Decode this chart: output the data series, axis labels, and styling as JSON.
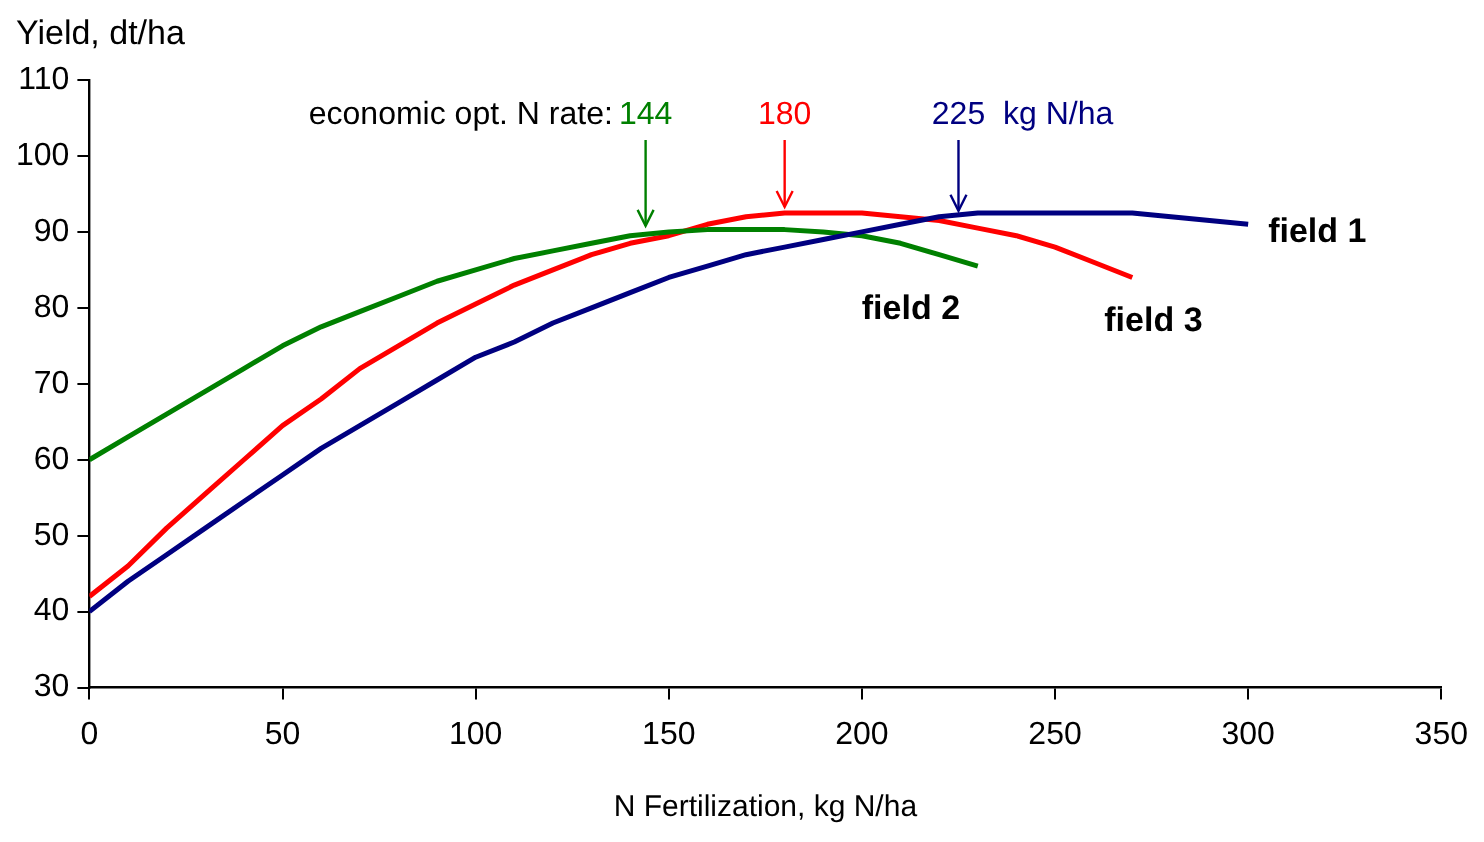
{
  "chart_data": {
    "type": "line",
    "ylabel": "Yield, dt/ha",
    "xlabel": "N Fertilization, kg N/ha",
    "xlim": [
      0,
      350
    ],
    "xticks": [
      0,
      50,
      100,
      150,
      200,
      250,
      300,
      350
    ],
    "ylim": [
      30,
      110
    ],
    "yticks": [
      30,
      40,
      50,
      60,
      70,
      80,
      90,
      100,
      110
    ],
    "grid": false,
    "legend": false,
    "marker": "none",
    "line_style": "solid",
    "series": [
      {
        "name": "field 1",
        "color": "#000080",
        "x": [
          0,
          10,
          20,
          30,
          40,
          50,
          60,
          70,
          80,
          90,
          100,
          110,
          120,
          130,
          140,
          150,
          160,
          170,
          180,
          190,
          200,
          210,
          220,
          230,
          240,
          250,
          260,
          270,
          280,
          290,
          300
        ],
        "values": [
          40,
          44,
          47.5,
          51,
          54.5,
          58,
          61.5,
          64.5,
          67.5,
          70.5,
          73.5,
          75.5,
          78,
          80,
          82,
          84,
          85.5,
          87,
          88,
          89,
          90,
          91,
          92,
          92.5,
          92.5,
          92.5,
          92.5,
          92.5,
          92,
          91.5,
          91
        ]
      },
      {
        "name": "field 2",
        "color": "#008000",
        "x": [
          0,
          10,
          20,
          30,
          40,
          50,
          60,
          70,
          80,
          90,
          100,
          110,
          120,
          130,
          140,
          150,
          160,
          170,
          180,
          190,
          200,
          210,
          220,
          230
        ],
        "values": [
          60,
          63,
          66,
          69,
          72,
          75,
          77.5,
          79.5,
          81.5,
          83.5,
          85,
          86.5,
          87.5,
          88.5,
          89.5,
          90,
          90.3,
          90.3,
          90.3,
          90,
          89.5,
          88.5,
          87,
          85.5
        ]
      },
      {
        "name": "field 3",
        "color": "#ff0000",
        "x": [
          0,
          10,
          20,
          30,
          40,
          50,
          60,
          70,
          80,
          90,
          100,
          110,
          120,
          130,
          140,
          150,
          160,
          170,
          180,
          190,
          200,
          210,
          220,
          230,
          240,
          250,
          260,
          270
        ],
        "values": [
          42,
          46,
          51,
          55.5,
          60,
          64.5,
          68,
          72,
          75,
          78,
          80.5,
          83,
          85,
          87,
          88.5,
          89.5,
          91,
          92,
          92.5,
          92.5,
          92.5,
          92,
          91.5,
          90.5,
          89.5,
          88,
          86,
          84
        ]
      }
    ],
    "annotations": [
      "economic opt. N rate:",
      {
        "text": "144",
        "x": 144,
        "y": 90
      },
      {
        "text": "180",
        "x": 180,
        "y": 92.5
      },
      {
        "text": "225  kg N/ha",
        "x": 225,
        "y": 92
      }
    ]
  }
}
